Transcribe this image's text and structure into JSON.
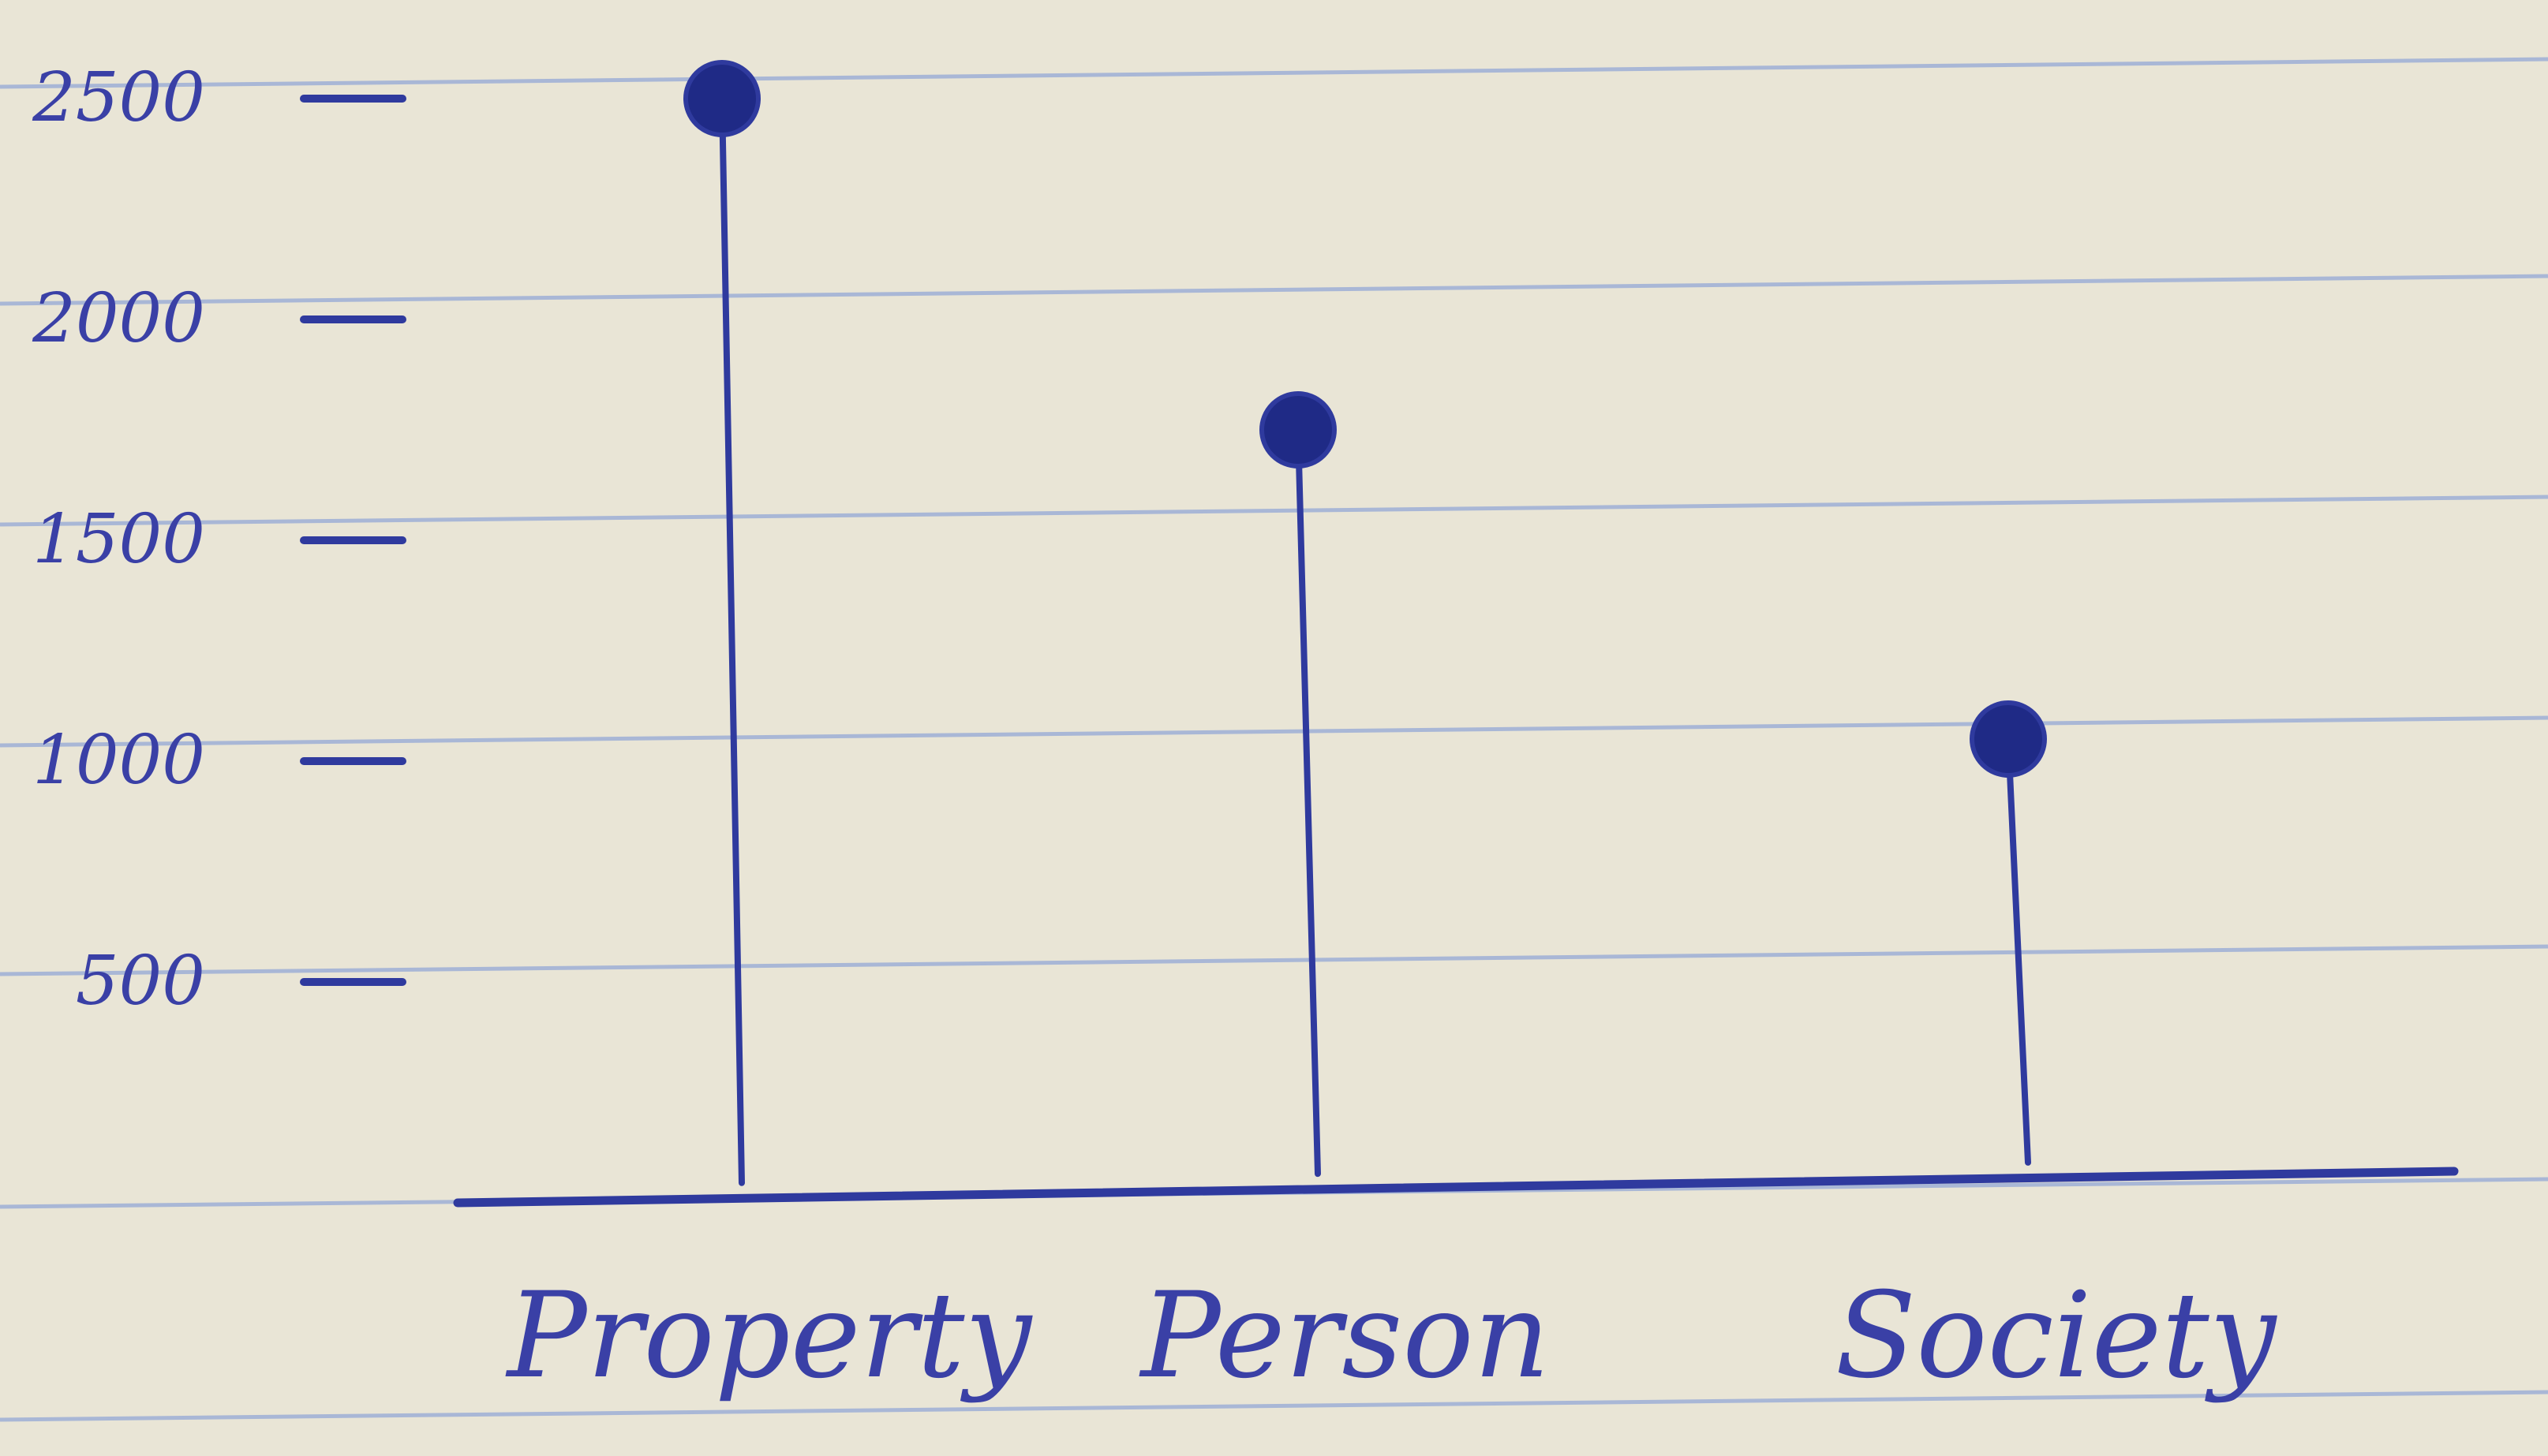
{
  "colors": {
    "paper": "#e9e5d6",
    "rule_line": "#9fb0d6",
    "ink": "#2f3a9e",
    "ink_dark": "#1f2a86"
  },
  "chart_data": {
    "type": "lollipop",
    "categories": [
      "Property",
      "Person",
      "Society"
    ],
    "values": [
      2500,
      1750,
      1050
    ],
    "y_ticks": [
      "500",
      "1000",
      "1500",
      "2000",
      "2500"
    ],
    "title": "",
    "xlabel": "",
    "ylabel": "",
    "ylim": [
      0,
      2500
    ],
    "grid": false
  }
}
